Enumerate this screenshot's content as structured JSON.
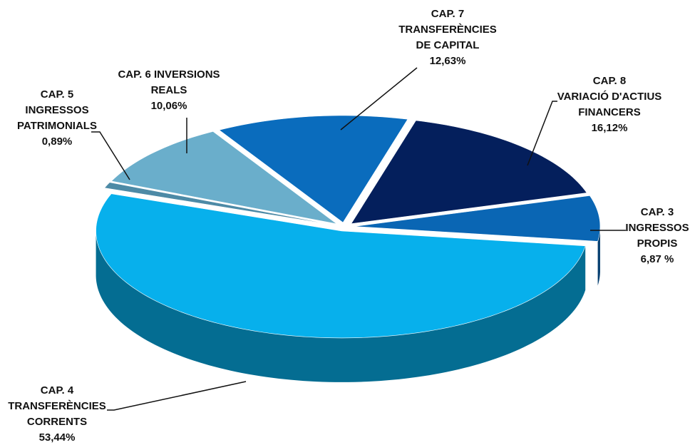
{
  "chart_data": {
    "type": "pie",
    "categories": [
      [
        "CAP. 3",
        "INGRESSOS",
        "PROPIS"
      ],
      [
        "CAP. 8",
        "VARIACIÓ D'ACTIUS",
        "FINANCERS"
      ],
      [
        "CAP. 7",
        "TRANSFERÈNCIES",
        "DE CAPITAL"
      ],
      [
        "CAP. 6 INVERSIONS",
        "REALS"
      ],
      [
        "CAP. 5",
        "INGRESSOS",
        "PATRIMONIALS"
      ],
      [
        "CAP. 4",
        "TRANSFERÈNCIES",
        "CORRENTS"
      ]
    ],
    "values": [
      6.87,
      16.12,
      12.63,
      10.06,
      0.89,
      53.44
    ],
    "value_labels": [
      "6,87 %",
      "16,12%",
      "12,63%",
      "10,06%",
      "0,89%",
      "53,44%"
    ],
    "colors": [
      "#0a66b4",
      "#041f5c",
      "#0a6cbd",
      "#6aaecb",
      "#4d8aa6",
      "#07b0ec"
    ]
  }
}
